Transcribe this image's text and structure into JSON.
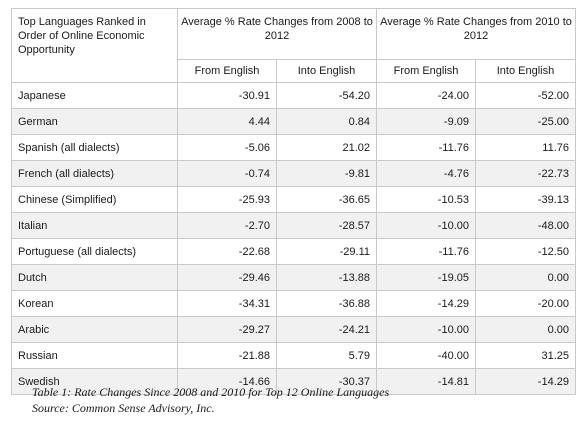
{
  "table": {
    "corner_header": "Top Languages Ranked in Order of Online Economic Opportunity",
    "group_headers": [
      "Average % Rate Changes from 2008 to 2012",
      "Average % Rate Changes from 2010 to 2012"
    ],
    "sub_headers": [
      "From English",
      "Into English",
      "From English",
      "Into English"
    ],
    "rows": [
      {
        "language": "Japanese",
        "values": [
          "-30.91",
          "-54.20",
          "-24.00",
          "-52.00"
        ]
      },
      {
        "language": "German",
        "values": [
          "4.44",
          "0.84",
          "-9.09",
          "-25.00"
        ]
      },
      {
        "language": "Spanish (all dialects)",
        "values": [
          "-5.06",
          "21.02",
          "-11.76",
          "11.76"
        ]
      },
      {
        "language": "French (all dialects)",
        "values": [
          "-0.74",
          "-9.81",
          "-4.76",
          "-22.73"
        ]
      },
      {
        "language": "Chinese (Simplified)",
        "values": [
          "-25.93",
          "-36.65",
          "-10.53",
          "-39.13"
        ]
      },
      {
        "language": "Italian",
        "values": [
          "-2.70",
          "-28.57",
          "-10.00",
          "-48.00"
        ]
      },
      {
        "language": "Portuguese (all dialects)",
        "values": [
          "-22.68",
          "-29.11",
          "-11.76",
          "-12.50"
        ]
      },
      {
        "language": "Dutch",
        "values": [
          "-29.46",
          "-13.88",
          "-19.05",
          "0.00"
        ]
      },
      {
        "language": "Korean",
        "values": [
          "-34.31",
          "-36.88",
          "-14.29",
          "-20.00"
        ]
      },
      {
        "language": "Arabic",
        "values": [
          "-29.27",
          "-24.21",
          "-10.00",
          "0.00"
        ]
      },
      {
        "language": "Russian",
        "values": [
          "-21.88",
          "5.79",
          "-40.00",
          "31.25"
        ]
      },
      {
        "language": "Swedish",
        "values": [
          "-14.66",
          "-30.37",
          "-14.81",
          "-14.29"
        ]
      }
    ]
  },
  "caption": {
    "line1": "Table 1: Rate Changes Since 2008 and 2010 for Top 12 Online Languages",
    "line2": "Source: Common Sense Advisory, Inc."
  },
  "colors": {
    "border": "#c9c9c9",
    "stripe": "#f1f1f1",
    "text": "#1a1a1a"
  }
}
